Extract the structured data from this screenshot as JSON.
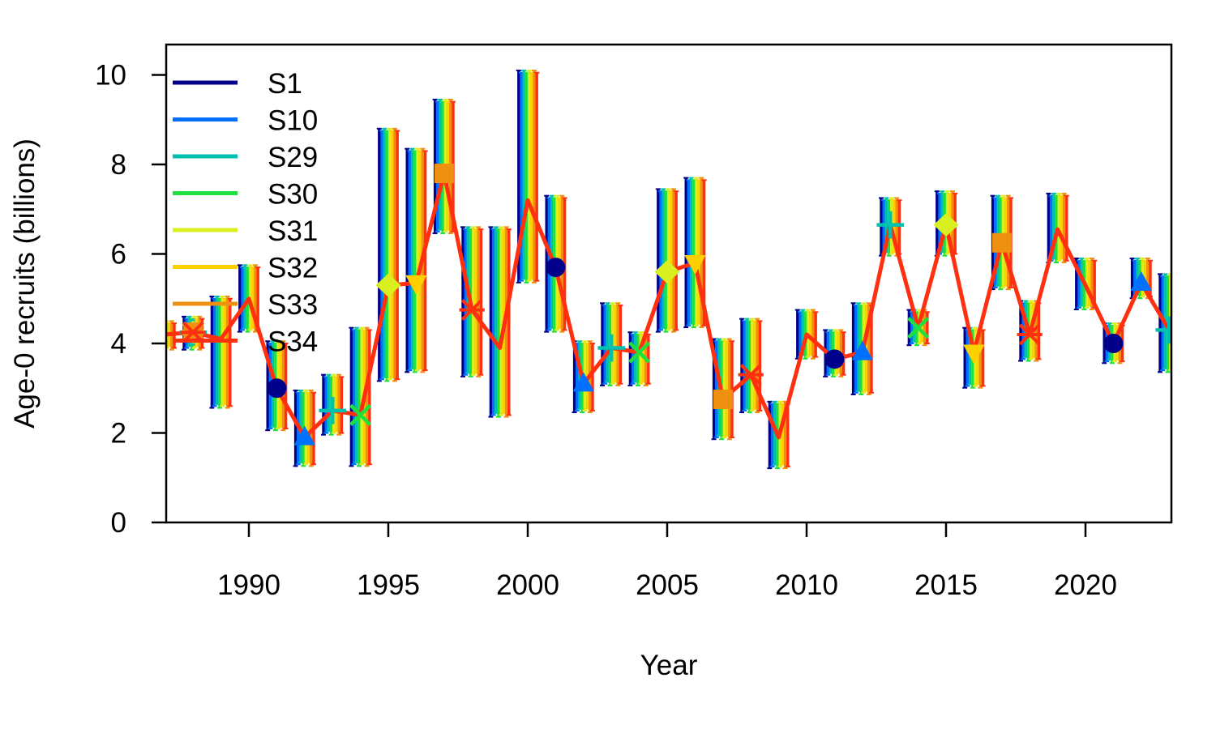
{
  "chart_data": {
    "type": "line",
    "title": "",
    "xlabel": "Year",
    "ylabel": "Age-0 recruits (billions)",
    "xlim": [
      1987,
      2023
    ],
    "ylim": [
      0,
      10.5
    ],
    "x_ticks": [
      1990,
      1995,
      2000,
      2005,
      2010,
      2015,
      2020
    ],
    "x_tick_labels": [
      "1990",
      "1995",
      "2000",
      "2005",
      "2010",
      "2015",
      "2020"
    ],
    "y_ticks": [
      0,
      2,
      4,
      6,
      8,
      10
    ],
    "y_tick_labels": [
      "0",
      "2",
      "4",
      "6",
      "8",
      "10"
    ],
    "grid": false,
    "legend_position": "top-left",
    "x": [
      1987,
      1988,
      1989,
      1990,
      1991,
      1992,
      1993,
      1994,
      1995,
      1996,
      1997,
      1998,
      1999,
      2000,
      2001,
      2002,
      2003,
      2004,
      2005,
      2006,
      2007,
      2008,
      2009,
      2010,
      2011,
      2012,
      2013,
      2014,
      2015,
      2016,
      2017,
      2018,
      2019,
      2020,
      2021,
      2022,
      2023
    ],
    "central": [
      4.2,
      4.25,
      4.1,
      5.0,
      3.0,
      1.9,
      2.5,
      2.4,
      5.3,
      5.35,
      7.8,
      4.75,
      3.9,
      7.2,
      5.7,
      3.1,
      3.9,
      3.8,
      5.6,
      5.8,
      2.75,
      3.3,
      1.9,
      4.2,
      3.65,
      3.8,
      6.65,
      4.35,
      6.65,
      3.8,
      6.25,
      4.2,
      6.55,
      5.3,
      4.0,
      5.35,
      4.3
    ],
    "lower": [
      3.9,
      3.9,
      2.6,
      4.3,
      2.1,
      1.3,
      2.0,
      1.3,
      3.2,
      3.4,
      6.5,
      3.3,
      2.4,
      5.4,
      4.3,
      2.5,
      3.1,
      3.1,
      4.3,
      4.4,
      1.9,
      2.5,
      1.25,
      3.7,
      3.3,
      2.9,
      6.0,
      4.0,
      6.0,
      3.05,
      5.25,
      3.65,
      5.85,
      4.8,
      3.6,
      5.05,
      3.4
    ],
    "upper": [
      4.5,
      4.6,
      5.05,
      5.75,
      4.05,
      2.95,
      3.3,
      4.35,
      8.8,
      8.35,
      9.45,
      6.6,
      6.6,
      10.1,
      7.3,
      4.05,
      4.9,
      4.25,
      7.45,
      7.7,
      4.1,
      4.55,
      2.7,
      4.75,
      4.3,
      4.9,
      7.25,
      4.75,
      7.4,
      4.35,
      7.3,
      4.95,
      7.35,
      5.9,
      4.45,
      5.9,
      5.55
    ],
    "series": [
      {
        "name": "S1",
        "color": "#00008B",
        "offset": [
          0,
          0,
          0,
          0,
          0,
          0,
          0,
          0,
          0,
          0,
          0,
          0,
          0,
          0,
          0,
          0,
          0,
          0,
          0,
          0,
          0,
          0,
          0,
          0,
          0,
          0,
          0,
          0,
          0,
          0,
          0,
          0,
          0,
          0,
          0,
          0,
          0
        ],
        "marker": "circle",
        "marker_years": [
          1988,
          1991,
          2001,
          2011,
          2021
        ]
      },
      {
        "name": "S10",
        "color": "#0070FF",
        "offset": [
          0,
          0,
          0,
          0,
          0,
          0,
          0,
          0,
          0,
          0,
          0,
          0,
          0,
          0,
          0,
          0,
          0,
          0,
          0,
          0,
          0,
          0,
          0,
          0,
          0,
          0,
          0,
          0,
          0,
          0,
          0,
          0,
          0,
          0,
          0,
          0,
          0
        ],
        "marker": "triangle",
        "marker_years": [
          1988,
          1992,
          2002,
          2012,
          2022
        ]
      },
      {
        "name": "S29",
        "color": "#00C0B0",
        "offset": [
          0,
          0,
          0,
          0,
          0,
          0,
          0,
          0,
          0,
          0,
          0,
          0,
          0,
          0,
          0,
          0,
          0,
          0,
          0,
          0,
          0,
          0,
          0,
          0,
          0,
          0,
          0,
          0,
          0,
          0,
          0,
          0,
          0,
          0,
          0,
          0,
          0
        ],
        "marker": "plus",
        "marker_years": [
          1988,
          1993,
          2003,
          2013,
          2023
        ]
      },
      {
        "name": "S30",
        "color": "#20E040",
        "offset": [
          0,
          0,
          0,
          0,
          0,
          0,
          0,
          0,
          0,
          0,
          0,
          0,
          0,
          0,
          0,
          0,
          0,
          0,
          0,
          0,
          0,
          0,
          0,
          0,
          0,
          0,
          0,
          0,
          0,
          0,
          0,
          0,
          0,
          0,
          0,
          0,
          0
        ],
        "marker": "x",
        "marker_years": [
          1988,
          1994,
          2004,
          2014
        ]
      },
      {
        "name": "S31",
        "color": "#D8F020",
        "offset": [
          0,
          0,
          0,
          0,
          0,
          0,
          0,
          0,
          0,
          0,
          0,
          0,
          0,
          0,
          0,
          0,
          0,
          0,
          0,
          0,
          0,
          0,
          0,
          0,
          0,
          0,
          0,
          0,
          0,
          0,
          0,
          0,
          0,
          0,
          0,
          0,
          0
        ],
        "marker": "diamond",
        "marker_years": [
          1988,
          1995,
          2005,
          2015
        ]
      },
      {
        "name": "S32",
        "color": "#FFD000",
        "offset": [
          0,
          0,
          0,
          0,
          0,
          0,
          0,
          0,
          0,
          0,
          0,
          0,
          0,
          0,
          0,
          0,
          0,
          0,
          0,
          0,
          0,
          0,
          0,
          0,
          0,
          0,
          0,
          0,
          0,
          0,
          0,
          0,
          0,
          0,
          0,
          0,
          0
        ],
        "marker": "triangle-down",
        "marker_years": [
          1988,
          1996,
          2006,
          2016
        ]
      },
      {
        "name": "S33",
        "color": "#F09010",
        "offset": [
          0,
          0,
          0,
          0,
          0,
          0,
          0,
          0,
          0,
          0,
          0,
          0,
          0,
          0,
          0,
          0,
          0,
          0,
          0,
          0,
          0,
          0,
          0,
          0,
          0,
          0,
          0,
          0,
          0,
          0,
          0,
          0,
          0,
          0,
          0,
          0,
          0
        ],
        "marker": "square",
        "marker_years": [
          1988,
          1997,
          2007,
          2017
        ]
      },
      {
        "name": "S34",
        "color": "#FF3010",
        "offset": [
          0,
          0,
          0,
          0,
          0,
          0,
          0,
          0,
          0,
          0,
          0,
          0,
          0,
          0,
          0,
          0,
          0,
          0,
          0,
          0,
          0,
          0,
          0,
          0,
          0,
          0,
          0,
          0,
          0,
          0,
          0,
          0,
          0,
          0,
          0,
          0,
          0
        ],
        "marker": "asterisk",
        "marker_years": [
          1988,
          1998,
          2008,
          2018
        ]
      }
    ]
  }
}
